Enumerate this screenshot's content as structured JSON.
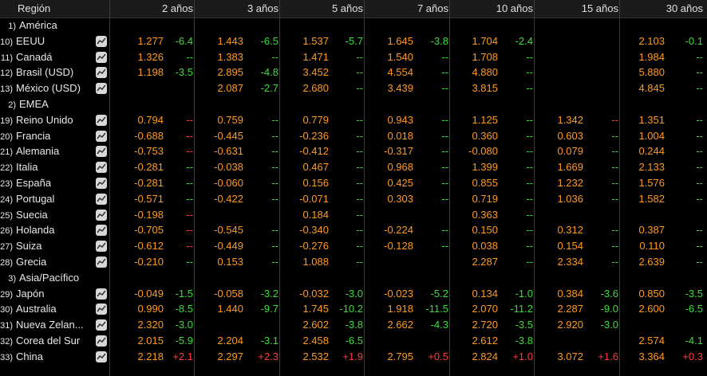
{
  "header": {
    "region": "Región",
    "columns": [
      "2 años",
      "3 años",
      "5 años",
      "7 años",
      "10 años",
      "15 años",
      "30 años"
    ]
  },
  "rows": [
    {
      "type": "group",
      "idx": "1)",
      "label": "América"
    },
    {
      "type": "data",
      "idx": "10)",
      "label": "EEUU",
      "cells": [
        [
          "1.277",
          "-6.4",
          "neg"
        ],
        [
          "1.443",
          "-6.5",
          "neg"
        ],
        [
          "1.537",
          "-5.7",
          "neg"
        ],
        [
          "1.645",
          "-3.8",
          "neg"
        ],
        [
          "1.704",
          "-2.4",
          "neg"
        ],
        [
          "",
          "",
          ""
        ],
        [
          "2.103",
          "-0.1",
          "neg"
        ]
      ]
    },
    {
      "type": "data",
      "idx": "11)",
      "label": "Canadá",
      "cells": [
        [
          "1.326",
          "--",
          "flat"
        ],
        [
          "1.383",
          "--",
          "flat"
        ],
        [
          "1.471",
          "--",
          "flat"
        ],
        [
          "1.540",
          "--",
          "flat"
        ],
        [
          "1.708",
          "--",
          "flat"
        ],
        [
          "",
          "",
          ""
        ],
        [
          "1.984",
          "--",
          "flat"
        ]
      ]
    },
    {
      "type": "data",
      "idx": "12)",
      "label": "Brasil (USD)",
      "cells": [
        [
          "1.198",
          "-3.5",
          "neg"
        ],
        [
          "2.895",
          "-4.8",
          "neg"
        ],
        [
          "3.452",
          "--",
          "flat"
        ],
        [
          "4.554",
          "--",
          "flat"
        ],
        [
          "4.880",
          "--",
          "flat"
        ],
        [
          "",
          "",
          ""
        ],
        [
          "5.880",
          "--",
          "flat"
        ]
      ]
    },
    {
      "type": "data",
      "idx": "13)",
      "label": "México (USD)",
      "cells": [
        [
          "",
          "",
          ""
        ],
        [
          "2.087",
          "-2.7",
          "neg"
        ],
        [
          "2.680",
          "--",
          "flat"
        ],
        [
          "3.439",
          "--",
          "flat"
        ],
        [
          "3.815",
          "--",
          "flat"
        ],
        [
          "",
          "",
          ""
        ],
        [
          "4.845",
          "--",
          "flat"
        ]
      ]
    },
    {
      "type": "group",
      "idx": "2)",
      "label": "EMEA"
    },
    {
      "type": "data",
      "idx": "19)",
      "label": "Reino Unido",
      "cells": [
        [
          "0.794",
          "--",
          "flatr"
        ],
        [
          "0.759",
          "--",
          "flat"
        ],
        [
          "0.779",
          "--",
          "flat"
        ],
        [
          "0.943",
          "--",
          "flat"
        ],
        [
          "1.125",
          "--",
          "flat"
        ],
        [
          "1.342",
          "--",
          "flatr"
        ],
        [
          "1.351",
          "--",
          "flat"
        ]
      ]
    },
    {
      "type": "data",
      "idx": "20)",
      "label": "Francia",
      "cells": [
        [
          "-0.688",
          "--",
          "flatr"
        ],
        [
          "-0.445",
          "--",
          "flat"
        ],
        [
          "-0.236",
          "--",
          "flat"
        ],
        [
          "0.018",
          "--",
          "flat"
        ],
        [
          "0.360",
          "--",
          "flat"
        ],
        [
          "0.603",
          "--",
          "flat"
        ],
        [
          "1.004",
          "--",
          "flat"
        ]
      ]
    },
    {
      "type": "data",
      "idx": "21)",
      "label": "Alemania",
      "cells": [
        [
          "-0.753",
          "--",
          "flatr"
        ],
        [
          "-0.631",
          "--",
          "flat"
        ],
        [
          "-0.412",
          "--",
          "flat"
        ],
        [
          "-0.317",
          "--",
          "flat"
        ],
        [
          "-0.080",
          "--",
          "flat"
        ],
        [
          "0.079",
          "--",
          "flat"
        ],
        [
          "0.244",
          "--",
          "flat"
        ]
      ]
    },
    {
      "type": "data",
      "idx": "22)",
      "label": "Italia",
      "cells": [
        [
          "-0.281",
          "--",
          "flat"
        ],
        [
          "-0.038",
          "--",
          "flat"
        ],
        [
          "0.467",
          "--",
          "flat"
        ],
        [
          "0.968",
          "--",
          "flat"
        ],
        [
          "1.399",
          "--",
          "flat"
        ],
        [
          "1.669",
          "--",
          "flat"
        ],
        [
          "2.133",
          "--",
          "flat"
        ]
      ]
    },
    {
      "type": "data",
      "idx": "23)",
      "label": "España",
      "cells": [
        [
          "-0.281",
          "--",
          "flat"
        ],
        [
          "-0.060",
          "--",
          "flat"
        ],
        [
          "0.156",
          "--",
          "flat"
        ],
        [
          "0.425",
          "--",
          "flat"
        ],
        [
          "0.855",
          "--",
          "flat"
        ],
        [
          "1.232",
          "--",
          "flat"
        ],
        [
          "1.576",
          "--",
          "flat"
        ]
      ]
    },
    {
      "type": "data",
      "idx": "24)",
      "label": "Portugal",
      "cells": [
        [
          "-0.571",
          "--",
          "flat"
        ],
        [
          "-0.422",
          "--",
          "flat"
        ],
        [
          "-0.071",
          "--",
          "flat"
        ],
        [
          "0.303",
          "--",
          "flat"
        ],
        [
          "0.719",
          "--",
          "flat"
        ],
        [
          "1.036",
          "--",
          "flat"
        ],
        [
          "1.582",
          "--",
          "flat"
        ]
      ]
    },
    {
      "type": "data",
      "idx": "25)",
      "label": "Suecia",
      "cells": [
        [
          "-0.198",
          "--",
          "flatr"
        ],
        [
          "",
          "",
          ""
        ],
        [
          "0.184",
          "--",
          "flat"
        ],
        [
          "",
          "",
          ""
        ],
        [
          "0.363",
          "--",
          "flat"
        ],
        [
          "",
          "",
          ""
        ],
        [
          "",
          "",
          ""
        ]
      ]
    },
    {
      "type": "data",
      "idx": "26)",
      "label": "Holanda",
      "cells": [
        [
          "-0.705",
          "--",
          "flatr"
        ],
        [
          "-0.545",
          "--",
          "flat"
        ],
        [
          "-0.340",
          "--",
          "flat"
        ],
        [
          "-0.224",
          "--",
          "flat"
        ],
        [
          "0.150",
          "--",
          "flat"
        ],
        [
          "0.312",
          "--",
          "flat"
        ],
        [
          "0.387",
          "--",
          "flat"
        ]
      ]
    },
    {
      "type": "data",
      "idx": "27)",
      "label": "Suiza",
      "cells": [
        [
          "-0.612",
          "--",
          "flatr"
        ],
        [
          "-0.449",
          "--",
          "flat"
        ],
        [
          "-0.276",
          "--",
          "flat"
        ],
        [
          "-0.128",
          "--",
          "flat"
        ],
        [
          "0.038",
          "--",
          "flat"
        ],
        [
          "0.154",
          "--",
          "flat"
        ],
        [
          "0.110",
          "--",
          "flat"
        ]
      ]
    },
    {
      "type": "data",
      "idx": "28)",
      "label": "Grecia",
      "cells": [
        [
          "-0.210",
          "--",
          "flat"
        ],
        [
          "0.153",
          "--",
          "flat"
        ],
        [
          "1.088",
          "--",
          "flat"
        ],
        [
          "",
          "",
          ""
        ],
        [
          "2.287",
          "--",
          "flat"
        ],
        [
          "2.334",
          "--",
          "flat"
        ],
        [
          "2.639",
          "--",
          "flat"
        ]
      ]
    },
    {
      "type": "group",
      "idx": "3)",
      "label": "Asia/Pacífico"
    },
    {
      "type": "data",
      "idx": "29)",
      "label": "Japón",
      "cells": [
        [
          "-0.049",
          "-1.5",
          "neg"
        ],
        [
          "-0.058",
          "-3.2",
          "neg"
        ],
        [
          "-0.032",
          "-3.0",
          "neg"
        ],
        [
          "-0.023",
          "-5.2",
          "neg"
        ],
        [
          "0.134",
          "-1.0",
          "neg"
        ],
        [
          "0.384",
          "-3.6",
          "neg"
        ],
        [
          "0.850",
          "-3.5",
          "neg"
        ]
      ]
    },
    {
      "type": "data",
      "idx": "30)",
      "label": "Australia",
      "cells": [
        [
          "0.990",
          "-8.5",
          "neg"
        ],
        [
          "1.440",
          "-9.7",
          "neg"
        ],
        [
          "1.745",
          "-10.2",
          "neg"
        ],
        [
          "1.918",
          "-11.5",
          "neg"
        ],
        [
          "2.070",
          "-11.2",
          "neg"
        ],
        [
          "2.287",
          "-9.0",
          "neg"
        ],
        [
          "2.600",
          "-6.5",
          "neg"
        ]
      ]
    },
    {
      "type": "data",
      "idx": "31)",
      "label": "Nueva Zelan...",
      "cells": [
        [
          "2.320",
          "-3.0",
          "neg"
        ],
        [
          "",
          "",
          ""
        ],
        [
          "2.602",
          "-3.8",
          "neg"
        ],
        [
          "2.662",
          "-4.3",
          "neg"
        ],
        [
          "2.720",
          "-3.5",
          "neg"
        ],
        [
          "2.920",
          "-3.0",
          "neg"
        ],
        [
          "",
          "",
          ""
        ]
      ]
    },
    {
      "type": "data",
      "idx": "32)",
      "label": "Corea del Sur",
      "cells": [
        [
          "2.015",
          "-5.9",
          "neg"
        ],
        [
          "2.204",
          "-3.1",
          "neg"
        ],
        [
          "2.458",
          "-6.5",
          "neg"
        ],
        [
          "",
          "",
          ""
        ],
        [
          "2.612",
          "-3.8",
          "neg"
        ],
        [
          "",
          "",
          ""
        ],
        [
          "2.574",
          "-4.1",
          "neg"
        ]
      ]
    },
    {
      "type": "data",
      "idx": "33)",
      "label": "China",
      "cells": [
        [
          "2.218",
          "+2.1",
          "pos"
        ],
        [
          "2.297",
          "+2.3",
          "pos"
        ],
        [
          "2.532",
          "+1.9",
          "pos"
        ],
        [
          "2.795",
          "+0.5",
          "pos"
        ],
        [
          "2.824",
          "+1.0",
          "pos"
        ],
        [
          "3.072",
          "+1.6",
          "pos"
        ],
        [
          "3.364",
          "+0.3",
          "pos"
        ]
      ]
    }
  ],
  "colors": {
    "value": "#ff9a1f",
    "change_down": "#3cdc3c",
    "change_up": "#ff3b3b",
    "header_bg": "#1a1a1a"
  },
  "icons": {
    "row_chart_button": "chart-line-icon"
  }
}
